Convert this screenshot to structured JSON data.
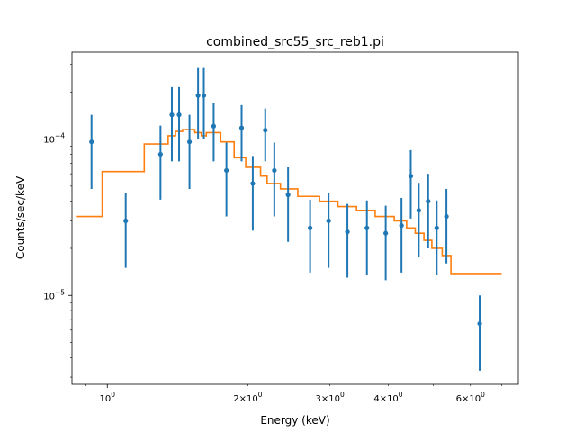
{
  "chart_data": {
    "type": "scatter",
    "title": "combined_src55_src_reb1.pi",
    "xlabel": "Energy (keV)",
    "ylabel": "Counts/sec/keV",
    "xscale": "log",
    "yscale": "log",
    "xlim": [
      0.84,
      7.6
    ],
    "ylim": [
      2.7e-06,
      0.00036
    ],
    "grid": false,
    "xticks_major": [
      {
        "value": 1,
        "label": "10^0"
      }
    ],
    "xticks_minor": [
      {
        "value": 2,
        "label": "2×10^0"
      },
      {
        "value": 3,
        "label": "3×10^0"
      },
      {
        "value": 4,
        "label": "4×10^0"
      },
      {
        "value": 6,
        "label": "6×10^0"
      }
    ],
    "yticks": [
      {
        "value": 1e-05,
        "label": "10^-5"
      },
      {
        "value": 0.0001,
        "label": "10^-4"
      }
    ],
    "colors": {
      "data": "#1f77b4",
      "model": "#ff7f0e"
    },
    "data_points": [
      {
        "x": 0.925,
        "y": 9.6e-05,
        "ylo": 4.8e-05,
        "yhi": 0.000143
      },
      {
        "x": 1.095,
        "y": 3e-05,
        "ylo": 1.5e-05,
        "yhi": 4.5e-05
      },
      {
        "x": 1.3,
        "y": 8e-05,
        "ylo": 4.1e-05,
        "yhi": 0.000122
      },
      {
        "x": 1.375,
        "y": 0.000143,
        "ylo": 7.2e-05,
        "yhi": 0.000215
      },
      {
        "x": 1.425,
        "y": 0.000143,
        "ylo": 7.2e-05,
        "yhi": 0.000215
      },
      {
        "x": 1.5,
        "y": 9.6e-05,
        "ylo": 4.8e-05,
        "yhi": 0.000143
      },
      {
        "x": 1.565,
        "y": 0.00019,
        "ylo": 0.0001,
        "yhi": 0.000285
      },
      {
        "x": 1.61,
        "y": 0.00019,
        "ylo": 0.0001,
        "yhi": 0.000285
      },
      {
        "x": 1.69,
        "y": 0.000121,
        "ylo": 7.2e-05,
        "yhi": 0.00017
      },
      {
        "x": 1.8,
        "y": 6.3e-05,
        "ylo": 3.2e-05,
        "yhi": 9.5e-05
      },
      {
        "x": 1.94,
        "y": 0.000118,
        "ylo": 7.2e-05,
        "yhi": 0.000165
      },
      {
        "x": 2.05,
        "y": 5.2e-05,
        "ylo": 2.6e-05,
        "yhi": 7.8e-05
      },
      {
        "x": 2.18,
        "y": 0.000114,
        "ylo": 7.2e-05,
        "yhi": 0.000157
      },
      {
        "x": 2.28,
        "y": 6.3e-05,
        "ylo": 3.2e-05,
        "yhi": 9.5e-05
      },
      {
        "x": 2.44,
        "y": 4.4e-05,
        "ylo": 2.2e-05,
        "yhi": 6.6e-05
      },
      {
        "x": 2.72,
        "y": 2.7e-05,
        "ylo": 1.4e-05,
        "yhi": 4.1e-05
      },
      {
        "x": 2.98,
        "y": 3e-05,
        "ylo": 1.5e-05,
        "yhi": 4.5e-05
      },
      {
        "x": 3.27,
        "y": 2.55e-05,
        "ylo": 1.3e-05,
        "yhi": 3.85e-05
      },
      {
        "x": 3.6,
        "y": 2.7e-05,
        "ylo": 1.35e-05,
        "yhi": 4.05e-05
      },
      {
        "x": 3.95,
        "y": 2.5e-05,
        "ylo": 1.25e-05,
        "yhi": 3.75e-05
      },
      {
        "x": 4.27,
        "y": 2.8e-05,
        "ylo": 1.4e-05,
        "yhi": 4.2e-05
      },
      {
        "x": 4.47,
        "y": 5.8e-05,
        "ylo": 3.1e-05,
        "yhi": 8.5e-05
      },
      {
        "x": 4.65,
        "y": 3.5e-05,
        "ylo": 1.75e-05,
        "yhi": 5.25e-05
      },
      {
        "x": 4.87,
        "y": 4e-05,
        "ylo": 2e-05,
        "yhi": 6e-05
      },
      {
        "x": 5.08,
        "y": 2.7e-05,
        "ylo": 1.35e-05,
        "yhi": 4.05e-05
      },
      {
        "x": 5.33,
        "y": 3.2e-05,
        "ylo": 1.6e-05,
        "yhi": 4.8e-05
      },
      {
        "x": 6.28,
        "y": 6.6e-06,
        "ylo": 3.3e-06,
        "yhi": 1e-05
      }
    ],
    "model_steps": [
      {
        "x0": 0.86,
        "x1": 0.975,
        "y": 3.2e-05
      },
      {
        "x0": 0.975,
        "x1": 1.2,
        "y": 6.2e-05
      },
      {
        "x0": 1.2,
        "x1": 1.35,
        "y": 9.3e-05
      },
      {
        "x0": 1.35,
        "x1": 1.4,
        "y": 0.000105
      },
      {
        "x0": 1.4,
        "x1": 1.45,
        "y": 0.000112
      },
      {
        "x0": 1.45,
        "x1": 1.54,
        "y": 0.000115
      },
      {
        "x0": 1.54,
        "x1": 1.59,
        "y": 0.00011
      },
      {
        "x0": 1.59,
        "x1": 1.63,
        "y": 0.000105
      },
      {
        "x0": 1.63,
        "x1": 1.75,
        "y": 0.00011
      },
      {
        "x0": 1.75,
        "x1": 1.87,
        "y": 9.6e-05
      },
      {
        "x0": 1.87,
        "x1": 1.98,
        "y": 7.6e-05
      },
      {
        "x0": 1.98,
        "x1": 2.13,
        "y": 6.6e-05
      },
      {
        "x0": 2.13,
        "x1": 2.2,
        "y": 5.8e-05
      },
      {
        "x0": 2.2,
        "x1": 2.35,
        "y": 5.2e-05
      },
      {
        "x0": 2.35,
        "x1": 2.56,
        "y": 4.8e-05
      },
      {
        "x0": 2.56,
        "x1": 2.85,
        "y": 4.3e-05
      },
      {
        "x0": 2.85,
        "x1": 3.12,
        "y": 4e-05
      },
      {
        "x0": 3.12,
        "x1": 3.42,
        "y": 3.7e-05
      },
      {
        "x0": 3.42,
        "x1": 3.75,
        "y": 3.5e-05
      },
      {
        "x0": 3.75,
        "x1": 4.12,
        "y": 3.2e-05
      },
      {
        "x0": 4.12,
        "x1": 4.38,
        "y": 3e-05
      },
      {
        "x0": 4.38,
        "x1": 4.57,
        "y": 2.7e-05
      },
      {
        "x0": 4.57,
        "x1": 4.77,
        "y": 2.5e-05
      },
      {
        "x0": 4.77,
        "x1": 4.96,
        "y": 2.25e-05
      },
      {
        "x0": 4.96,
        "x1": 5.22,
        "y": 2e-05
      },
      {
        "x0": 5.22,
        "x1": 5.45,
        "y": 1.8e-05
      },
      {
        "x0": 5.45,
        "x1": 7.0,
        "y": 1.38e-05
      }
    ]
  }
}
